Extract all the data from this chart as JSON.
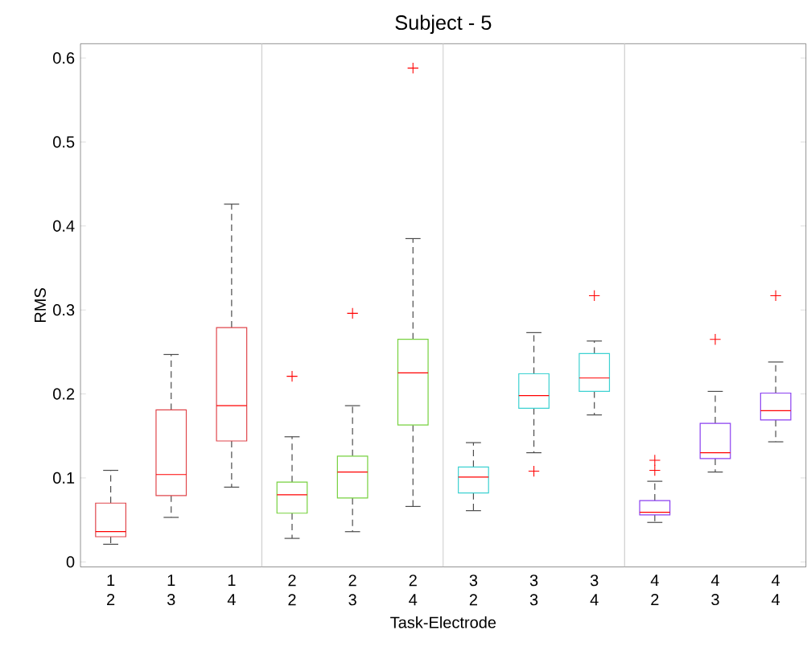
{
  "chart_data": {
    "type": "box",
    "title": "Subject - 5",
    "xlabel": "Task-Electrode",
    "ylabel": "RMS",
    "categories": [
      "1 2",
      "1 3",
      "1 4",
      "2 2",
      "2 3",
      "2 4",
      "3 2",
      "3 3",
      "3 4",
      "4 2",
      "4 3",
      "4 4"
    ],
    "colors": [
      "#e0474c",
      "#e0474c",
      "#e0474c",
      "#77d13f",
      "#77d13f",
      "#77d13f",
      "#3dd1d1",
      "#3dd1d1",
      "#3dd1d1",
      "#8a3ff0",
      "#8a3ff0",
      "#8a3ff0"
    ],
    "boxes": [
      {
        "low": 0.021,
        "q1": 0.03,
        "median": 0.036,
        "q3": 0.07,
        "high": 0.109
      },
      {
        "low": 0.053,
        "q1": 0.079,
        "median": 0.104,
        "q3": 0.181,
        "high": 0.247
      },
      {
        "low": 0.089,
        "q1": 0.144,
        "median": 0.186,
        "q3": 0.279,
        "high": 0.426
      },
      {
        "low": 0.028,
        "q1": 0.058,
        "median": 0.08,
        "q3": 0.095,
        "high": 0.149,
        "outliers": [
          0.221
        ]
      },
      {
        "low": 0.036,
        "q1": 0.076,
        "median": 0.107,
        "q3": 0.126,
        "high": 0.186,
        "outliers": [
          0.296
        ]
      },
      {
        "low": 0.066,
        "q1": 0.163,
        "median": 0.225,
        "q3": 0.265,
        "high": 0.385,
        "outliers": [
          0.588
        ]
      },
      {
        "low": 0.061,
        "q1": 0.082,
        "median": 0.101,
        "q3": 0.113,
        "high": 0.142
      },
      {
        "low": 0.13,
        "q1": 0.183,
        "median": 0.198,
        "q3": 0.224,
        "high": 0.273,
        "outliers": [
          0.108
        ]
      },
      {
        "low": 0.175,
        "q1": 0.203,
        "median": 0.219,
        "q3": 0.248,
        "high": 0.263,
        "outliers": [
          0.317
        ]
      },
      {
        "low": 0.047,
        "q1": 0.056,
        "median": 0.059,
        "q3": 0.073,
        "high": 0.096,
        "outliers": [
          0.121,
          0.109
        ]
      },
      {
        "low": 0.107,
        "q1": 0.123,
        "median": 0.13,
        "q3": 0.165,
        "high": 0.203,
        "outliers": [
          0.265
        ]
      },
      {
        "low": 0.143,
        "q1": 0.169,
        "median": 0.18,
        "q3": 0.201,
        "high": 0.238,
        "outliers": [
          0.317
        ]
      }
    ],
    "ylim": [
      -0.006,
      0.617
    ],
    "yticks": [
      0,
      0.1,
      0.2,
      0.3,
      0.4,
      0.5,
      0.6
    ],
    "grid": false
  }
}
